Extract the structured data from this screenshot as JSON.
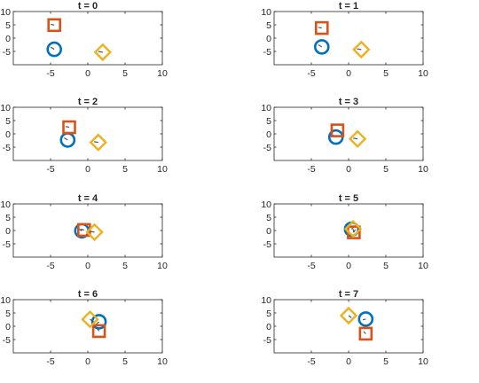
{
  "chart_data": [
    {
      "type": "scatter",
      "title": "t = 0",
      "xlim": [
        -10,
        10
      ],
      "ylim": [
        -10,
        10
      ],
      "xticks": [
        "-5",
        "0",
        "5",
        "10"
      ],
      "yticks": [
        "10",
        "5",
        "0",
        "-5"
      ],
      "series": [
        {
          "marker": "circle",
          "color": "#0072BD",
          "points": [
            {
              "x": -4.5,
              "y": -4.2
            }
          ],
          "heading": [
            {
              "dx": -0.5,
              "dy": 0.3
            }
          ]
        },
        {
          "marker": "square",
          "color": "#D95319",
          "points": [
            {
              "x": -4.5,
              "y": 4.9
            }
          ],
          "heading": [
            {
              "dx": -0.5,
              "dy": 0.1
            }
          ]
        },
        {
          "marker": "diamond",
          "color": "#EDB120",
          "points": [
            {
              "x": 2.0,
              "y": -5.3
            }
          ],
          "heading": [
            {
              "dx": -0.6,
              "dy": 0.1
            }
          ]
        }
      ]
    },
    {
      "type": "scatter",
      "title": "t = 1",
      "xlim": [
        -10,
        10
      ],
      "ylim": [
        -10,
        10
      ],
      "xticks": [
        "-5",
        "0",
        "5",
        "10"
      ],
      "yticks": [
        "10",
        "5",
        "0",
        "-5"
      ],
      "series": [
        {
          "marker": "circle",
          "color": "#0072BD",
          "points": [
            {
              "x": -3.6,
              "y": -3.3
            }
          ],
          "heading": [
            {
              "dx": -0.5,
              "dy": 0.3
            }
          ]
        },
        {
          "marker": "square",
          "color": "#D95319",
          "points": [
            {
              "x": -3.6,
              "y": 3.8
            }
          ],
          "heading": [
            {
              "dx": -0.5,
              "dy": 0.1
            }
          ]
        },
        {
          "marker": "diamond",
          "color": "#EDB120",
          "points": [
            {
              "x": 1.7,
              "y": -4.3
            }
          ],
          "heading": [
            {
              "dx": -0.6,
              "dy": 0.1
            }
          ]
        }
      ]
    },
    {
      "type": "scatter",
      "title": "t = 2",
      "xlim": [
        -10,
        10
      ],
      "ylim": [
        -10,
        10
      ],
      "xticks": [
        "-5",
        "0",
        "5",
        "10"
      ],
      "yticks": [
        "10",
        "5",
        "0",
        "-5"
      ],
      "series": [
        {
          "marker": "circle",
          "color": "#0072BD",
          "points": [
            {
              "x": -2.7,
              "y": -2.3
            }
          ],
          "heading": [
            {
              "dx": -0.5,
              "dy": 0.3
            }
          ]
        },
        {
          "marker": "square",
          "color": "#D95319",
          "points": [
            {
              "x": -2.5,
              "y": 2.5
            }
          ],
          "heading": [
            {
              "dx": -0.5,
              "dy": 0.1
            }
          ]
        },
        {
          "marker": "diamond",
          "color": "#EDB120",
          "points": [
            {
              "x": 1.4,
              "y": -3.2
            }
          ],
          "heading": [
            {
              "dx": -0.6,
              "dy": 0.1
            }
          ]
        }
      ]
    },
    {
      "type": "scatter",
      "title": "t = 3",
      "xlim": [
        -10,
        10
      ],
      "ylim": [
        -10,
        10
      ],
      "xticks": [
        "-5",
        "0",
        "5",
        "10"
      ],
      "yticks": [
        "10",
        "5",
        "0",
        "-5"
      ],
      "series": [
        {
          "marker": "circle",
          "color": "#0072BD",
          "points": [
            {
              "x": -1.7,
              "y": -1.2
            }
          ],
          "heading": [
            {
              "dx": -0.5,
              "dy": 0.3
            }
          ]
        },
        {
          "marker": "square",
          "color": "#D95319",
          "points": [
            {
              "x": -1.5,
              "y": 1.3
            }
          ],
          "heading": [
            {
              "dx": -0.5,
              "dy": 0.1
            }
          ]
        },
        {
          "marker": "diamond",
          "color": "#EDB120",
          "points": [
            {
              "x": 1.2,
              "y": -1.9
            }
          ],
          "heading": [
            {
              "dx": -0.6,
              "dy": 0.1
            }
          ]
        }
      ]
    },
    {
      "type": "scatter",
      "title": "t = 4",
      "xlim": [
        -10,
        10
      ],
      "ylim": [
        -10,
        10
      ],
      "xticks": [
        "-5",
        "0",
        "5",
        "10"
      ],
      "yticks": [
        "10",
        "5",
        "0",
        "-5"
      ],
      "series": [
        {
          "marker": "circle",
          "color": "#0072BD",
          "points": [
            {
              "x": -0.8,
              "y": -0.1
            }
          ],
          "heading": [
            {
              "dx": -0.5,
              "dy": 0.3
            }
          ]
        },
        {
          "marker": "square",
          "color": "#D95319",
          "points": [
            {
              "x": -0.5,
              "y": 0.2
            }
          ],
          "heading": [
            {
              "dx": -0.5,
              "dy": 0.1
            }
          ]
        },
        {
          "marker": "diamond",
          "color": "#EDB120",
          "points": [
            {
              "x": 0.9,
              "y": -0.6
            }
          ],
          "heading": [
            {
              "dx": -0.6,
              "dy": 0.1
            }
          ]
        }
      ]
    },
    {
      "type": "scatter",
      "title": "t = 5",
      "xlim": [
        -10,
        10
      ],
      "ylim": [
        -10,
        10
      ],
      "xticks": [
        "-5",
        "0",
        "5",
        "10"
      ],
      "yticks": [
        "10",
        "5",
        "0",
        "-5"
      ],
      "series": [
        {
          "marker": "circle",
          "color": "#0072BD",
          "points": [
            {
              "x": 0.4,
              "y": 0.5
            }
          ],
          "heading": [
            {
              "dx": 0.3,
              "dy": 0.3
            }
          ]
        },
        {
          "marker": "square",
          "color": "#D95319",
          "points": [
            {
              "x": 0.7,
              "y": -0.7
            }
          ],
          "heading": [
            {
              "dx": 0.2,
              "dy": 0.4
            }
          ]
        },
        {
          "marker": "diamond",
          "color": "#EDB120",
          "points": [
            {
              "x": 0.6,
              "y": 0.6
            }
          ],
          "heading": [
            {
              "dx": 0.1,
              "dy": -0.5
            }
          ]
        }
      ]
    },
    {
      "type": "scatter",
      "title": "t = 6",
      "xlim": [
        -10,
        10
      ],
      "ylim": [
        -10,
        10
      ],
      "xticks": [
        "-5",
        "0",
        "5",
        "10"
      ],
      "yticks": [
        "10",
        "5",
        "0",
        "-5"
      ],
      "series": [
        {
          "marker": "circle",
          "color": "#0072BD",
          "points": [
            {
              "x": 1.5,
              "y": 1.7
            }
          ],
          "heading": [
            {
              "dx": -0.4,
              "dy": -0.4
            }
          ]
        },
        {
          "marker": "square",
          "color": "#D95319",
          "points": [
            {
              "x": 1.5,
              "y": -1.8
            }
          ],
          "heading": [
            {
              "dx": -0.3,
              "dy": 0.4
            }
          ]
        },
        {
          "marker": "diamond",
          "color": "#EDB120",
          "points": [
            {
              "x": 0.3,
              "y": 2.6
            }
          ],
          "heading": [
            {
              "dx": 0.5,
              "dy": -0.3
            }
          ]
        }
      ]
    },
    {
      "type": "scatter",
      "title": "t = 7",
      "xlim": [
        -10,
        10
      ],
      "ylim": [
        -10,
        10
      ],
      "xticks": [
        "-5",
        "0",
        "5",
        "10"
      ],
      "yticks": [
        "10",
        "5",
        "0",
        "-5"
      ],
      "series": [
        {
          "marker": "circle",
          "color": "#0072BD",
          "points": [
            {
              "x": 2.3,
              "y": 2.7
            }
          ],
          "heading": [
            {
              "dx": -0.4,
              "dy": -0.1
            }
          ]
        },
        {
          "marker": "square",
          "color": "#D95319",
          "points": [
            {
              "x": 2.3,
              "y": -2.8
            }
          ],
          "heading": [
            {
              "dx": -0.3,
              "dy": 0.3
            }
          ]
        },
        {
          "marker": "diamond",
          "color": "#EDB120",
          "points": [
            {
              "x": 0.0,
              "y": 4.0
            }
          ],
          "heading": [
            {
              "dx": 0.4,
              "dy": -0.3
            }
          ]
        }
      ]
    }
  ]
}
